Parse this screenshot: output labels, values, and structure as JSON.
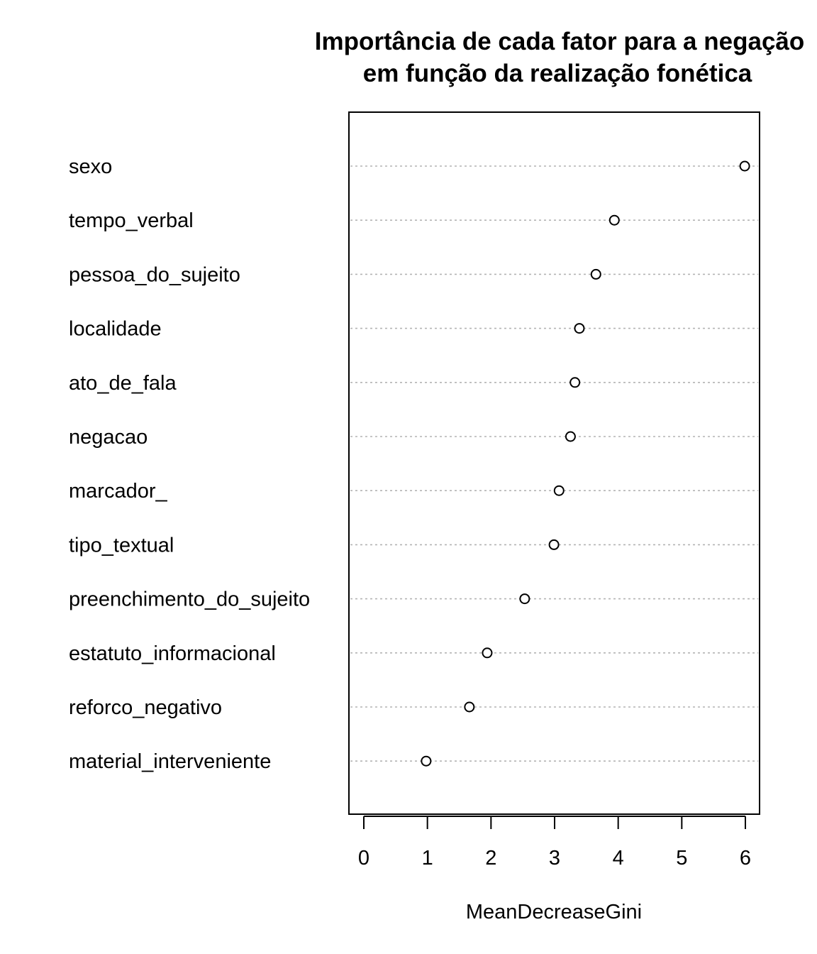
{
  "chart_data": {
    "type": "scatter",
    "subtype": "dotchart",
    "title_lines": [
      "Importância de cada fator para a negação",
      "em função da realização fonética"
    ],
    "xlabel": "MeanDecreaseGini",
    "ylabel": "",
    "xlim": [
      -0.24,
      6.24
    ],
    "xticks": [
      0,
      1,
      2,
      3,
      4,
      5,
      6
    ],
    "grid": "dotted horizontal guide lines per category",
    "legend": "none",
    "point_style": "open circle",
    "categories": [
      "sexo",
      "tempo_verbal",
      "pessoa_do_sujeito",
      "localidade",
      "ato_de_fala",
      "negacao",
      "marcador_",
      "tipo_textual",
      "preenchimento_do_sujeito",
      "estatuto_informacional",
      "reforco_negativo",
      "material_interveniente"
    ],
    "values": [
      5.99,
      3.94,
      3.65,
      3.39,
      3.32,
      3.25,
      3.07,
      2.99,
      2.53,
      1.94,
      1.66,
      0.98
    ]
  }
}
